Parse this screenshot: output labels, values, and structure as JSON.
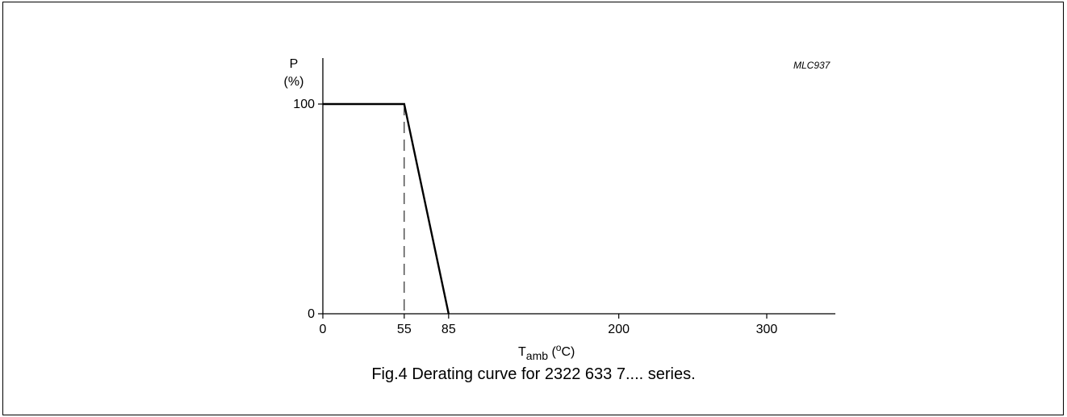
{
  "chart_data": {
    "type": "line",
    "code": "MLC937",
    "ylabel": "P",
    "yunit": "(%)",
    "xlabel_main": "T",
    "xlabel_sub": "amb",
    "xlabel_unit_open": " (",
    "xlabel_unit_sup": "o",
    "xlabel_unit_close": "C)",
    "xticks": [
      "0",
      "55",
      "85",
      "200",
      "300"
    ],
    "yticks": [
      "0",
      "100"
    ],
    "xlim": [
      0,
      342
    ],
    "ylim": [
      0,
      122
    ],
    "series": [
      {
        "x": [
          0,
          55,
          85
        ],
        "y": [
          100,
          100,
          0
        ]
      }
    ],
    "reference_line": {
      "x": 55,
      "y_from": 0,
      "y_to": 100,
      "style": "dashed"
    }
  },
  "caption": "Fig.4  Derating curve for 2322 633 7.... series."
}
